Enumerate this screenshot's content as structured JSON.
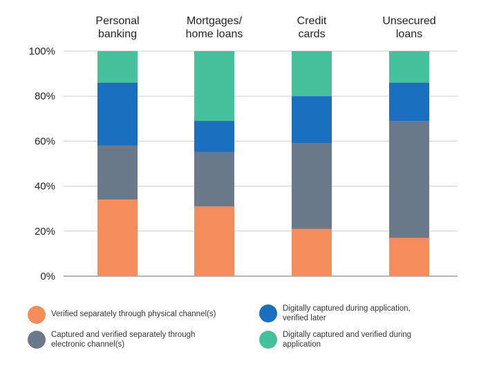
{
  "chart_data": {
    "type": "bar",
    "stacked": true,
    "categories": [
      "Personal\nbanking",
      "Mortgages/\nhome loans",
      "Credit\ncards",
      "Unsecured\nloans"
    ],
    "series": [
      {
        "name": "Verified separately through physical channel(s)",
        "color": "#f48c5c",
        "values": [
          34,
          31,
          21,
          17
        ]
      },
      {
        "name": "Captured and verified separately through\nelectronic channel(s)",
        "color": "#6b7a8a",
        "values": [
          24,
          24,
          38,
          52
        ]
      },
      {
        "name": "Digitally captured during application,\nverified later",
        "color": "#1a6fbf",
        "values": [
          28,
          14,
          21,
          17
        ]
      },
      {
        "name": "Digitally captured and verified during\napplication",
        "color": "#45c29b",
        "values": [
          14,
          31,
          20,
          14
        ]
      }
    ],
    "yticks": [
      "0%",
      "20%",
      "40%",
      "60%",
      "80%",
      "100%"
    ],
    "ylim": [
      0,
      100
    ],
    "grid": true,
    "legend_position": "bottom"
  }
}
